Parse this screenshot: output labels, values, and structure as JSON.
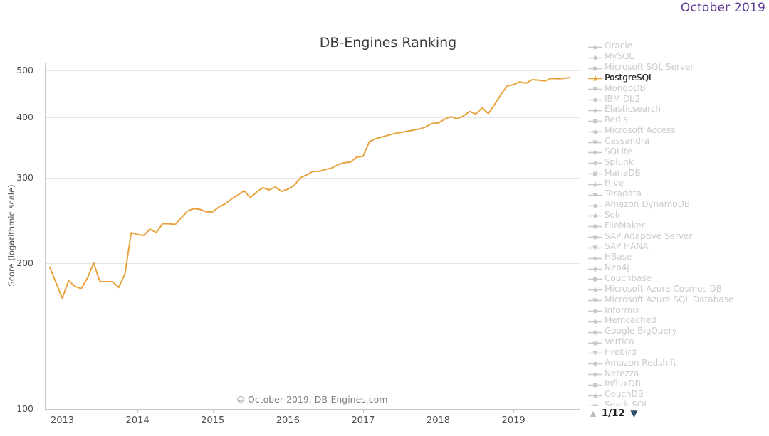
{
  "page": {
    "date_label": "October 2019",
    "title": "DB-Engines Ranking",
    "copyright": "© October 2019, DB-Engines.com"
  },
  "chart_data": {
    "type": "line",
    "title": "DB-Engines Ranking",
    "xlabel": "",
    "ylabel": "Score (logarithmic scale)",
    "yscale": "logarithmic",
    "ylim": [
      100,
      500
    ],
    "yticks": [
      100,
      200,
      300,
      400,
      500
    ],
    "xticks": [
      2013,
      2014,
      2015,
      2016,
      2017,
      2018,
      2019
    ],
    "grid": true,
    "legend_position": "right",
    "series": [
      {
        "name": "PostgreSQL",
        "color": "#e8a33d",
        "start_month": "2012-11",
        "end_month": "2019-10",
        "interval": "monthly",
        "values": [
          196,
          182,
          169,
          184,
          179,
          177,
          186,
          200,
          183,
          183,
          183,
          178,
          190,
          231,
          229,
          228,
          235,
          231,
          241,
          241,
          240,
          248,
          256,
          259,
          258,
          255,
          255,
          261,
          265,
          271,
          276,
          282,
          273,
          280,
          286,
          283,
          287,
          281,
          284,
          289,
          300,
          304,
          309,
          309,
          312,
          314,
          319,
          322,
          323,
          331,
          332,
          356,
          361,
          364,
          367,
          370,
          372,
          374,
          376,
          378,
          382,
          388,
          389,
          396,
          401,
          397,
          402,
          411,
          406,
          418,
          407,
          425,
          445,
          464,
          467,
          473,
          470,
          478,
          477,
          475,
          481,
          480,
          481,
          483
        ]
      }
    ]
  },
  "legend": {
    "items": [
      {
        "label": "Oracle",
        "marker": "circle",
        "selected": false
      },
      {
        "label": "MySQL",
        "marker": "diamond",
        "selected": false
      },
      {
        "label": "Microsoft SQL Server",
        "marker": "square",
        "selected": false
      },
      {
        "label": "PostgreSQL",
        "marker": "star",
        "selected": true
      },
      {
        "label": "MongoDB",
        "marker": "triangle-down",
        "selected": false
      },
      {
        "label": "IBM Db2",
        "marker": "circle",
        "selected": false
      },
      {
        "label": "Elasticsearch",
        "marker": "diamond",
        "selected": false
      },
      {
        "label": "Redis",
        "marker": "square",
        "selected": false
      },
      {
        "label": "Microsoft Access",
        "marker": "star",
        "selected": false
      },
      {
        "label": "Cassandra",
        "marker": "triangle-down",
        "selected": false
      },
      {
        "label": "SQLite",
        "marker": "circle",
        "selected": false
      },
      {
        "label": "Splunk",
        "marker": "diamond",
        "selected": false
      },
      {
        "label": "MariaDB",
        "marker": "square",
        "selected": false
      },
      {
        "label": "Hive",
        "marker": "star",
        "selected": false
      },
      {
        "label": "Teradata",
        "marker": "triangle-down",
        "selected": false
      },
      {
        "label": "Amazon DynamoDB",
        "marker": "circle",
        "selected": false
      },
      {
        "label": "Solr",
        "marker": "diamond",
        "selected": false
      },
      {
        "label": "FileMaker",
        "marker": "square",
        "selected": false
      },
      {
        "label": "SAP Adaptive Server",
        "marker": "star",
        "selected": false
      },
      {
        "label": "SAP HANA",
        "marker": "triangle-down",
        "selected": false
      },
      {
        "label": "HBase",
        "marker": "circle",
        "selected": false
      },
      {
        "label": "Neo4j",
        "marker": "diamond",
        "selected": false
      },
      {
        "label": "Couchbase",
        "marker": "square",
        "selected": false
      },
      {
        "label": "Microsoft Azure Cosmos DB",
        "marker": "star",
        "selected": false
      },
      {
        "label": "Microsoft Azure SQL Database",
        "marker": "triangle-down",
        "selected": false
      },
      {
        "label": "Informix",
        "marker": "circle",
        "selected": false
      },
      {
        "label": "Memcached",
        "marker": "diamond",
        "selected": false
      },
      {
        "label": "Google BigQuery",
        "marker": "square",
        "selected": false
      },
      {
        "label": "Vertica",
        "marker": "star",
        "selected": false
      },
      {
        "label": "Firebird",
        "marker": "triangle-down",
        "selected": false
      },
      {
        "label": "Amazon Redshift",
        "marker": "circle",
        "selected": false
      },
      {
        "label": "Netezza",
        "marker": "diamond",
        "selected": false
      },
      {
        "label": "InfluxDB",
        "marker": "square",
        "selected": false
      },
      {
        "label": "CouchDB",
        "marker": "star",
        "selected": false
      },
      {
        "label": "Spark SQL",
        "marker": "triangle-down",
        "selected": false
      }
    ],
    "pager": {
      "up_icon": "▲",
      "label": "1/12",
      "down_icon": "▼"
    }
  },
  "colors": {
    "series_orange": "#e8a33d",
    "date_purple": "#5c3896",
    "legend_gray_text": "#c8ccd0",
    "legend_gray_marker": "#c6c9cc",
    "legend_selected_text": "#323232",
    "axis_line": "#c6c6c6",
    "grid_line": "#e4e4e4",
    "pager_up": "#b7bbbf",
    "pager_down": "#31506d"
  }
}
